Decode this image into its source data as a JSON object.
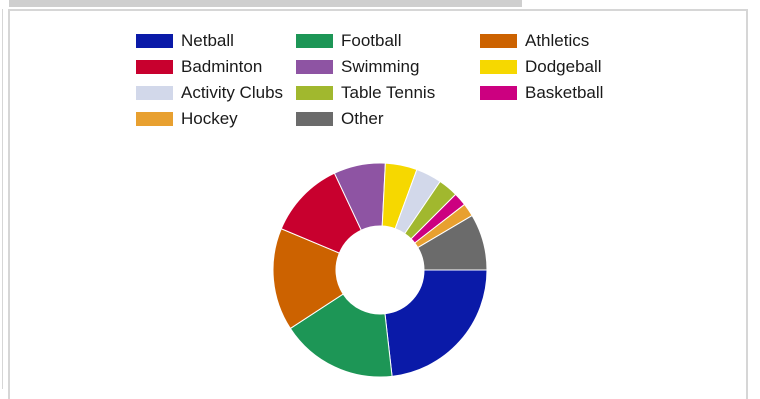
{
  "chart_data": {
    "type": "pie",
    "title": "",
    "legend_position": "top",
    "donut": true,
    "categories": [
      "Netball",
      "Football",
      "Athletics",
      "Badminton",
      "Swimming",
      "Dodgeball",
      "Activity Clubs",
      "Table Tennis",
      "Basketball",
      "Hockey",
      "Other"
    ],
    "values": [
      23.2,
      17.6,
      15.5,
      11.7,
      7.8,
      4.8,
      3.9,
      3.0,
      2.0,
      2.0,
      8.5
    ],
    "colors": [
      "#0a1aa8",
      "#1d9656",
      "#cc6200",
      "#c8002e",
      "#8e54a3",
      "#f6d800",
      "#d2d8ea",
      "#a1b82e",
      "#cc0080",
      "#e8a030",
      "#6b6b6b"
    ]
  }
}
